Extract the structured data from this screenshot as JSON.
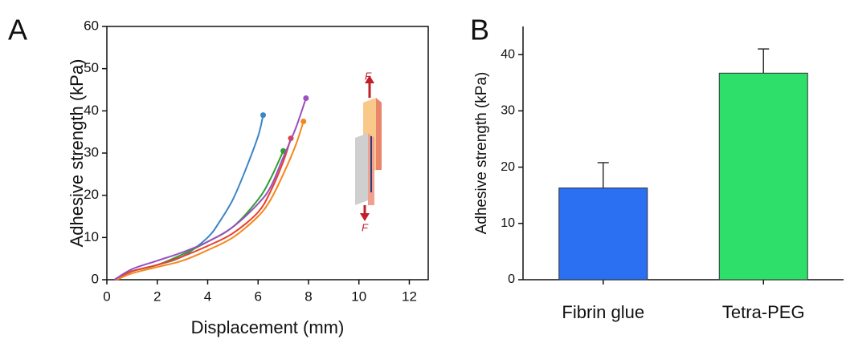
{
  "chart_data": [
    {
      "type": "line",
      "panel_label": "A",
      "xlabel": "Displacement (mm)",
      "ylabel": "Adhesive strength (kPa)",
      "xlim": [
        0,
        12.75
      ],
      "ylim": [
        0,
        60
      ],
      "xticks": [
        0,
        2,
        4,
        6,
        8,
        10,
        12
      ],
      "yticks": [
        0,
        10,
        20,
        30,
        40,
        50,
        60
      ],
      "annotations": [
        "F",
        "F"
      ],
      "series": [
        {
          "color": "#3a86c8",
          "x": [
            0.3,
            1,
            2,
            3,
            4,
            4.5,
            5,
            5.5,
            6,
            6.2
          ],
          "values": [
            0,
            2,
            3.5,
            5.5,
            10,
            14,
            19,
            26,
            34,
            39
          ]
        },
        {
          "color": "#2ca02c",
          "x": [
            0.3,
            1,
            2,
            3,
            4,
            5,
            6,
            6.5,
            7
          ],
          "values": [
            0,
            2,
            3.5,
            6,
            9,
            12.5,
            19,
            24,
            30.5
          ]
        },
        {
          "color": "#e8402a",
          "x": [
            0.3,
            1,
            2,
            3,
            4,
            5,
            6,
            6.5,
            7,
            7.3
          ],
          "values": [
            0,
            2,
            3.5,
            5.5,
            8,
            11,
            16,
            21,
            28,
            33.5
          ]
        },
        {
          "color": "#f5861f",
          "x": [
            0.4,
            1,
            2,
            3,
            4,
            5,
            6,
            6.5,
            7,
            7.5,
            7.8
          ],
          "values": [
            0,
            1.5,
            3,
            4.5,
            7,
            10,
            15,
            19,
            25,
            32,
            37.5
          ]
        },
        {
          "color": "#9b4fc0",
          "x": [
            0.3,
            1,
            2,
            3,
            4,
            5,
            6,
            6.5,
            7,
            7.5,
            7.9
          ],
          "values": [
            0,
            2.5,
            4.5,
            6.5,
            9,
            12.5,
            18,
            22,
            29,
            36,
            43
          ]
        }
      ]
    },
    {
      "type": "bar",
      "panel_label": "B",
      "ylabel": "Adhesive strength (kPa)",
      "categories": [
        "Fibrin glue",
        "Tetra-PEG"
      ],
      "values": [
        16.3,
        36.7
      ],
      "errors": [
        4.5,
        4.3
      ],
      "colors": [
        "#2b6ff2",
        "#2ee06a"
      ],
      "ylim": [
        0,
        45
      ],
      "yticks": [
        0,
        10,
        20,
        30,
        40
      ]
    }
  ]
}
